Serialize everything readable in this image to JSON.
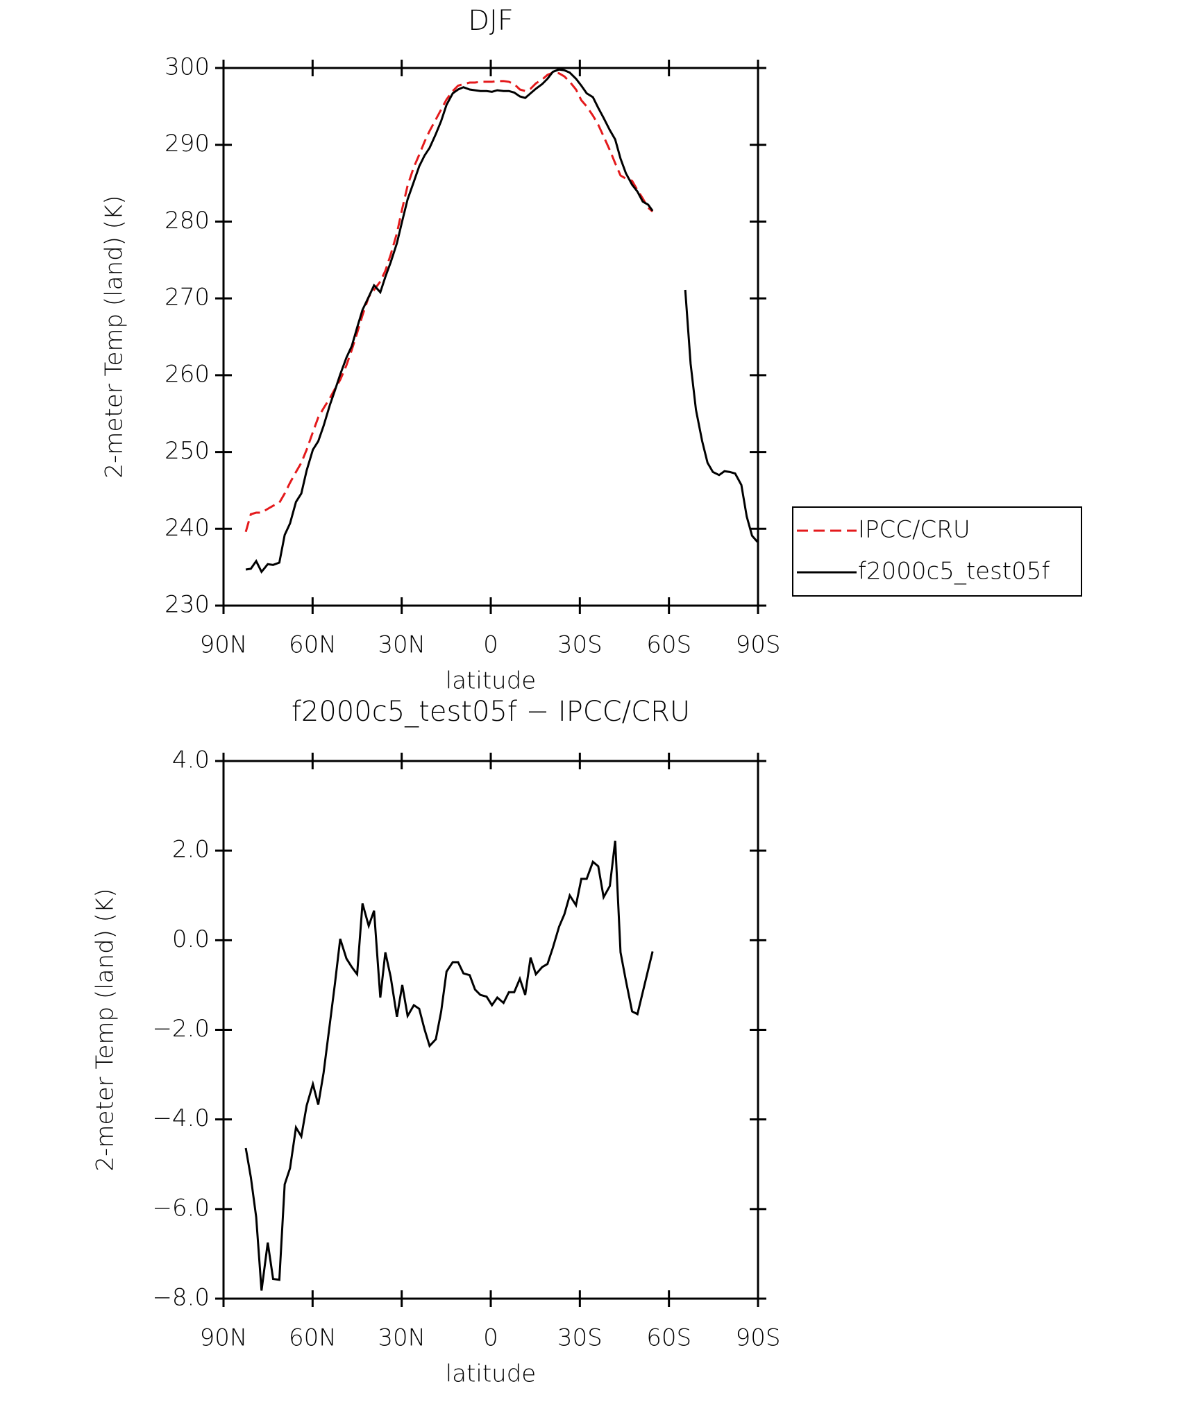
{
  "chart_data": [
    {
      "type": "line",
      "title": "DJF",
      "x_label": "latitude",
      "y_label": "2-meter Temp (land) (K)",
      "x": [
        82.5,
        80.8,
        79,
        77.2,
        75.1,
        73.3,
        71.2,
        69.4,
        67.6,
        65.6,
        63.8,
        62,
        59.9,
        58.1,
        56.3,
        54.2,
        52.5,
        50.7,
        48.6,
        46.8,
        45,
        43.2,
        41.1,
        39.3,
        37.2,
        35.5,
        33.7,
        31.6,
        29.8,
        28,
        25.9,
        24.1,
        22.3,
        20.6,
        18.5,
        16.7,
        14.9,
        12.8,
        11,
        9.2,
        7.1,
        5.3,
        3.5,
        1.4,
        -0.4,
        -2.2,
        -4.3,
        -6.1,
        -7.9,
        -9.8,
        -11.6,
        -13.4,
        -15.2,
        -17.3,
        -19.1,
        -20.9,
        -23,
        -24.8,
        -26.6,
        -28.7,
        -30.5,
        -32.3,
        -34.4,
        -36.2,
        -38,
        -40.1,
        -41.9,
        -43.7,
        -45.5,
        -47.6,
        -49.4,
        -51.2,
        -53,
        -54.5,
        -60,
        -65.5,
        -67.3,
        -69.1,
        -71.2,
        -73,
        -74.8,
        -76.9,
        -78.7,
        -80.5,
        -82.3,
        -84.4,
        -86.2,
        -88,
        -89.8
      ],
      "series": [
        {
          "name": "IPCC/CRU",
          "color": "#e41a1c",
          "linestyle": "dashed",
          "values": [
            239.6,
            241.9,
            242.1,
            242.1,
            242.6,
            243,
            243.4,
            244.6,
            246,
            247.4,
            248.6,
            250.3,
            252.6,
            254.5,
            255.7,
            257,
            258.2,
            259.4,
            261.3,
            263.3,
            265.5,
            267.8,
            270.2,
            271.1,
            272.2,
            273.6,
            275.7,
            278.5,
            281.7,
            284.7,
            287.1,
            288.7,
            290.4,
            291.8,
            293.3,
            294.6,
            295.9,
            297,
            297.7,
            297.9,
            298.1,
            298.1,
            298.2,
            298.2,
            298.2,
            298.3,
            298.3,
            298.2,
            297.9,
            297.2,
            297,
            297.3,
            298,
            298.5,
            299.1,
            299.4,
            299.3,
            298.9,
            298.2,
            297.2,
            295.8,
            295,
            293.8,
            292.6,
            291.1,
            289.3,
            287.6,
            286,
            285.6,
            285.3,
            284.1,
            283,
            281.8,
            281.3,
            null,
            null,
            null,
            null,
            null,
            null,
            null,
            null,
            null,
            null,
            null,
            null,
            null,
            null,
            null
          ]
        },
        {
          "name": "f2000c5_test05f",
          "color": "#000000",
          "linestyle": "solid",
          "values": [
            234.7,
            234.8,
            235.8,
            234.4,
            235.4,
            235.3,
            235.6,
            239.2,
            240.7,
            243.5,
            244.6,
            247.6,
            250.3,
            251.4,
            253.4,
            256.1,
            258,
            260.1,
            262.3,
            263.8,
            266.2,
            268.5,
            270.2,
            271.7,
            270.8,
            272.8,
            274.7,
            277.2,
            280.1,
            282.9,
            285.2,
            287.2,
            288.6,
            289.6,
            291.4,
            293.1,
            295.2,
            296.7,
            297.2,
            297.5,
            297.2,
            297.1,
            297,
            297,
            296.9,
            297.1,
            297,
            297,
            296.8,
            296.3,
            296.1,
            296.7,
            297.3,
            297.9,
            298.6,
            299.5,
            299.8,
            299.7,
            299.4,
            298.6,
            297.7,
            296.7,
            296.2,
            294.8,
            293.5,
            291.9,
            290.7,
            288.2,
            286.3,
            284.8,
            283.9,
            282.6,
            282.2,
            281.4,
            null,
            271.1,
            261.5,
            255.5,
            251.4,
            248.6,
            247.4,
            247,
            247.5,
            247.4,
            247.2,
            245.7,
            241.6,
            239.1,
            238.3
          ]
        }
      ],
      "xlim": [
        90,
        -90
      ],
      "xticks": [
        {
          "value": 90,
          "label": "90N"
        },
        {
          "value": 60,
          "label": "60N"
        },
        {
          "value": 30,
          "label": "30N"
        },
        0,
        {
          "value": -30,
          "label": "30S"
        },
        {
          "value": -60,
          "label": "60S"
        },
        {
          "value": -90,
          "label": "90S"
        }
      ],
      "ylim": [
        230,
        300
      ],
      "yticks": [
        230,
        240,
        250,
        260,
        270,
        280,
        290,
        300
      ],
      "legend": "right"
    },
    {
      "type": "line",
      "title": "f2000c5_test05f − IPCC/CRU",
      "x_label": "latitude",
      "y_label": "2-meter Temp (land) (K)",
      "x": [
        82.5,
        80.8,
        79,
        77.2,
        75.1,
        73.3,
        71.2,
        69.4,
        67.6,
        65.6,
        63.8,
        62,
        59.9,
        58.1,
        56.3,
        54.2,
        52.5,
        50.7,
        48.6,
        46.8,
        45,
        43.2,
        41.1,
        39.3,
        37.2,
        35.5,
        33.7,
        31.6,
        29.8,
        28,
        25.9,
        24.1,
        22.3,
        20.6,
        18.5,
        16.7,
        14.9,
        12.8,
        11,
        9.2,
        7.1,
        5.3,
        3.5,
        1.4,
        -0.4,
        -2.2,
        -4.3,
        -6.1,
        -7.9,
        -9.8,
        -11.6,
        -13.4,
        -15.2,
        -17.3,
        -19.1,
        -20.9,
        -23,
        -24.8,
        -26.6,
        -28.7,
        -30.5,
        -32.3,
        -34.4,
        -36.2,
        -38,
        -40.1,
        -41.9,
        -43.7,
        -45.5,
        -47.6,
        -49.4,
        -54.5
      ],
      "series": [
        {
          "color": "#000000",
          "linestyle": "solid",
          "values": [
            -4.64,
            -5.29,
            -6.18,
            -7.82,
            -6.75,
            -7.56,
            -7.58,
            -5.45,
            -5.09,
            -4.18,
            -4.38,
            -3.69,
            -3.21,
            -3.67,
            -2.96,
            -1.87,
            -0.98,
            0.03,
            -0.41,
            -0.6,
            -0.76,
            0.82,
            0.32,
            0.66,
            -1.28,
            -0.27,
            -0.82,
            -1.71,
            -1,
            -1.69,
            -1.45,
            -1.53,
            -1.99,
            -2.36,
            -2.21,
            -1.59,
            -0.7,
            -0.49,
            -0.49,
            -0.74,
            -0.78,
            -1.1,
            -1.22,
            -1.26,
            -1.45,
            -1.28,
            -1.4,
            -1.16,
            -1.16,
            -0.86,
            -1.22,
            -0.39,
            -0.76,
            -0.6,
            -0.53,
            -0.17,
            0.3,
            0.58,
            1,
            0.78,
            1.37,
            1.37,
            1.75,
            1.65,
            0.96,
            1.21,
            2.22,
            -0.27,
            -0.9,
            -1.59,
            -1.65,
            -0.25
          ]
        }
      ],
      "xlim": [
        90,
        -90
      ],
      "xticks": [
        {
          "value": 90,
          "label": "90N"
        },
        {
          "value": 60,
          "label": "60N"
        },
        {
          "value": 30,
          "label": "30N"
        },
        0,
        {
          "value": -30,
          "label": "30S"
        },
        {
          "value": -60,
          "label": "60S"
        },
        {
          "value": -90,
          "label": "90S"
        }
      ],
      "ylim": [
        -8,
        4
      ],
      "yticks": [
        {
          "value": -8,
          "label": "−8.0"
        },
        {
          "value": -6,
          "label": "−6.0"
        },
        {
          "value": -4,
          "label": "−4.0"
        },
        {
          "value": -2,
          "label": "−2.0"
        },
        {
          "value": 0,
          "label": "0.0"
        },
        {
          "value": 2,
          "label": "2.0"
        },
        {
          "value": 4,
          "label": "4.0"
        }
      ]
    }
  ]
}
